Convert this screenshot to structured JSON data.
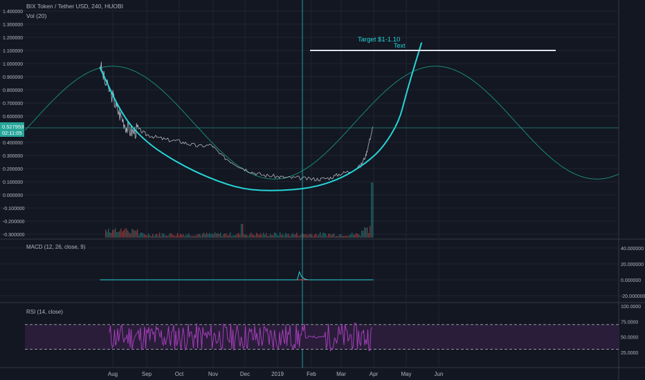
{
  "header": {
    "symbol_line": "BIX Token  / Tether USD, 240, HUOBI",
    "volume_label": "Vol (20)"
  },
  "colors": {
    "background": "#131722",
    "grid": "#1f2431",
    "price_line": "#d1d4dc",
    "cyan_curve": "#26d7d9",
    "sine_curve": "#1a8a7a",
    "price_badge_bg": "#26a69a",
    "macd_line": "#26d7d9",
    "signal_line": "#ef5350",
    "rsi_line": "#a33fb8",
    "rsi_band": "#2a1d3a",
    "target_line": "#e0e3eb"
  },
  "chart_data": [
    {
      "type": "line",
      "title": "BIX Token  / Tether USD, 240, HUOBI",
      "x_tick_labels": [
        "Aug",
        "Sep",
        "Oct",
        "Nov",
        "Dec",
        "2019",
        "Feb",
        "Mar",
        "Apr",
        "May",
        "Jun"
      ],
      "y_tick_labels": [
        "1.400000",
        "1.300000",
        "1.200000",
        "1.100000",
        "1.000000",
        "0.900000",
        "0.800000",
        "0.700000",
        "0.600000",
        "0.400000",
        "0.300000",
        "0.200000",
        "0.100000",
        "0.000000",
        "-0.100000",
        "-0.200000",
        "-0.300000"
      ],
      "ylim": [
        -0.3,
        1.45
      ],
      "current_price": "0.527953",
      "countdown": "02:11:05",
      "annotations": [
        "Target $1-1.10",
        "Text"
      ],
      "target_level": 1.1,
      "price_series": {
        "x": [
          "2018-07-20",
          "2018-07-25",
          "2018-08-01",
          "2018-08-05",
          "2018-08-10",
          "2018-08-15",
          "2018-08-20",
          "2018-08-25",
          "2018-09-01",
          "2018-09-10",
          "2018-09-20",
          "2018-10-01",
          "2018-10-10",
          "2018-10-20",
          "2018-11-01",
          "2018-11-10",
          "2018-11-20",
          "2018-12-01",
          "2018-12-10",
          "2018-12-20",
          "2019-01-01",
          "2019-01-10",
          "2019-01-20",
          "2019-02-01",
          "2019-02-10",
          "2019-02-20",
          "2019-03-01",
          "2019-03-10",
          "2019-03-20",
          "2019-03-25",
          "2019-03-28",
          "2019-04-01"
        ],
        "y": [
          1.0,
          0.85,
          0.75,
          0.65,
          0.58,
          0.5,
          0.48,
          0.5,
          0.46,
          0.44,
          0.42,
          0.41,
          0.39,
          0.37,
          0.38,
          0.3,
          0.25,
          0.2,
          0.17,
          0.15,
          0.14,
          0.13,
          0.13,
          0.12,
          0.12,
          0.13,
          0.16,
          0.18,
          0.22,
          0.3,
          0.4,
          0.53
        ]
      },
      "cup_curve": {
        "x": [
          "2018-07-20",
          "2018-08-10",
          "2018-09-01",
          "2018-10-01",
          "2018-11-01",
          "2018-12-01",
          "2019-01-01",
          "2019-02-01",
          "2019-03-01",
          "2019-03-25",
          "2019-04-10",
          "2019-04-25",
          "2019-05-01",
          "2019-05-10",
          "2019-05-16"
        ],
        "y": [
          0.97,
          0.6,
          0.4,
          0.24,
          0.12,
          0.04,
          0.03,
          0.05,
          0.12,
          0.24,
          0.36,
          0.56,
          0.75,
          1.0,
          1.16
        ]
      },
      "sine_wave": {
        "low": 0.12,
        "high": 0.98,
        "peak_dates": [
          "2018-08-01",
          "2019-05-29"
        ]
      }
    },
    {
      "type": "bar",
      "title": "Vol (20)",
      "note": "volume histogram along the bottom of the price pane"
    },
    {
      "type": "line",
      "title": "MACD (12, 26, close, 9)",
      "y_tick_labels": [
        "40.000000",
        "20.000000",
        "0.000000",
        "-20.000000"
      ],
      "ylim": [
        -25,
        45
      ],
      "x": [
        "2018-07-20",
        "2019-01-20",
        "2019-01-22",
        "2019-01-24",
        "2019-01-27",
        "2019-01-30",
        "2019-04-01"
      ],
      "macd": [
        0,
        0,
        10,
        4,
        1,
        0,
        0
      ],
      "signal": [
        0,
        0,
        0,
        0,
        0,
        0,
        0
      ]
    },
    {
      "type": "line",
      "title": "RSI (14, close)",
      "y_tick_labels": [
        "100.0000",
        "75.0000",
        "50.0000",
        "25.0000"
      ],
      "ylim": [
        0,
        105
      ],
      "upper_band": 70,
      "lower_band": 30,
      "range": [
        20,
        100
      ]
    }
  ],
  "panes": {
    "macd_label": "MACD (12, 26, close, 9)",
    "rsi_label": "RSI (14, close)"
  }
}
